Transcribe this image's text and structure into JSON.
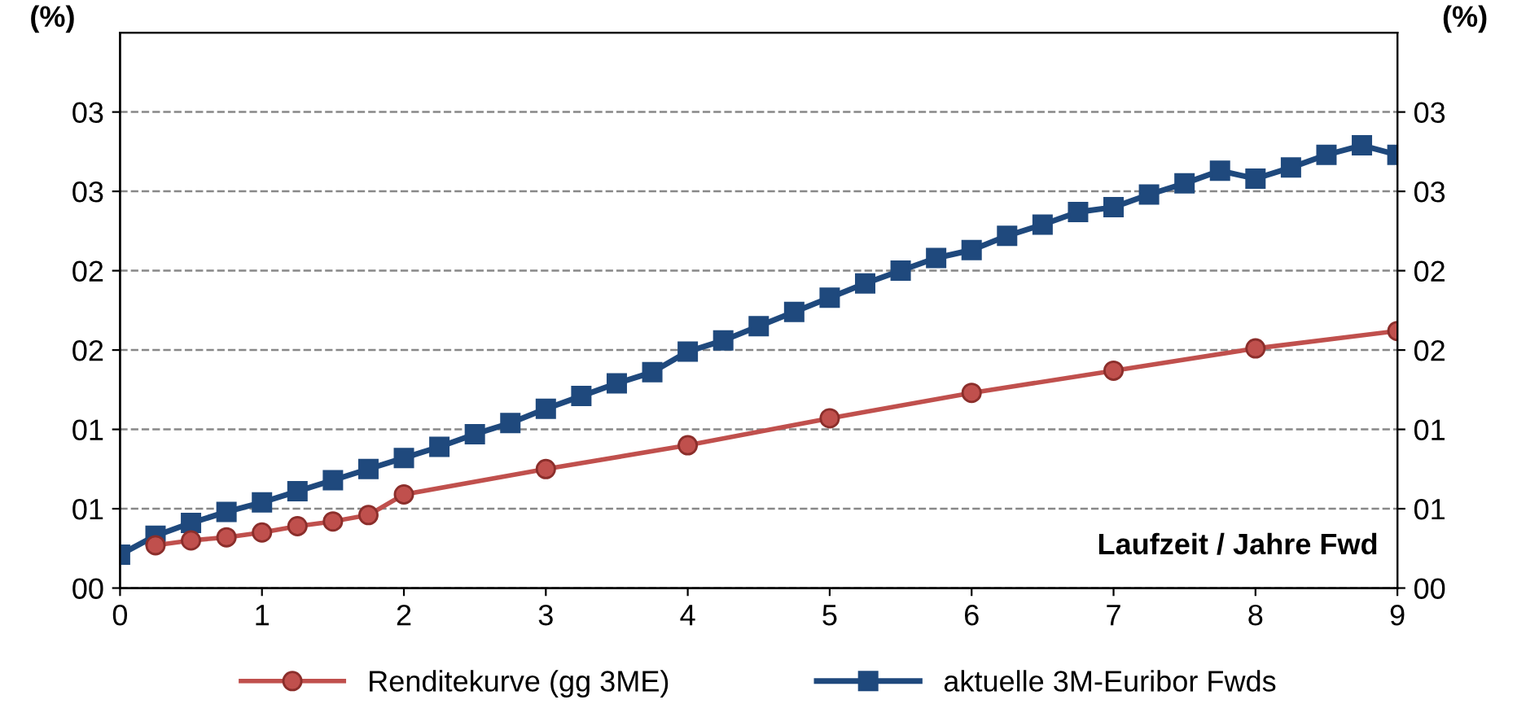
{
  "chart_data": {
    "type": "line",
    "ylabel": "(%)",
    "y2label": "(%)",
    "annotations": [
      "Laufzeit / Jahre Fwd"
    ],
    "xlim": [
      0,
      9
    ],
    "xticks": [
      0,
      1,
      2,
      3,
      4,
      5,
      6,
      7,
      8,
      9
    ],
    "ylim": [
      0,
      3.5
    ],
    "yticks": [
      {
        "value": 0,
        "label": "00"
      },
      {
        "value": 0.5,
        "label": "01"
      },
      {
        "value": 1.0,
        "label": "01"
      },
      {
        "value": 1.5,
        "label": "02"
      },
      {
        "value": 2.0,
        "label": "02"
      },
      {
        "value": 2.5,
        "label": "03"
      },
      {
        "value": 3.0,
        "label": "03"
      }
    ],
    "y2lim": [
      0,
      3.5
    ],
    "y2ticks": [
      {
        "value": 0,
        "label": "00"
      },
      {
        "value": 0.5,
        "label": "01"
      },
      {
        "value": 1.0,
        "label": "01"
      },
      {
        "value": 1.5,
        "label": "02"
      },
      {
        "value": 2.0,
        "label": "02"
      },
      {
        "value": 2.5,
        "label": "03"
      },
      {
        "value": 3.0,
        "label": "03"
      }
    ],
    "grid": "y",
    "legend": "bottom",
    "line_style": "solid",
    "series": [
      {
        "name": "Renditekurve (gg 3ME)",
        "color": "#c0504d",
        "marker": "circle",
        "x": [
          0.25,
          0.5,
          0.75,
          1,
          1.25,
          1.5,
          1.75,
          2,
          3,
          4,
          5,
          6,
          7,
          8,
          9
        ],
        "values": [
          0.27,
          0.3,
          0.32,
          0.35,
          0.39,
          0.42,
          0.46,
          0.59,
          0.75,
          0.9,
          1.07,
          1.23,
          1.37,
          1.51,
          1.62
        ]
      },
      {
        "name": "aktuelle 3M-Euribor Fwds",
        "color": "#1f497d",
        "marker": "square",
        "x": [
          0,
          0.25,
          0.5,
          0.75,
          1,
          1.25,
          1.5,
          1.75,
          2,
          2.25,
          2.5,
          2.75,
          3,
          3.25,
          3.5,
          3.75,
          4,
          4.25,
          4.5,
          4.75,
          5,
          5.25,
          5.5,
          5.75,
          6,
          6.25,
          6.5,
          6.75,
          7,
          7.25,
          7.5,
          7.75,
          8,
          8.25,
          8.5,
          8.75,
          9
        ],
        "values": [
          0.21,
          0.33,
          0.41,
          0.48,
          0.54,
          0.61,
          0.68,
          0.75,
          0.82,
          0.89,
          0.97,
          1.04,
          1.13,
          1.21,
          1.29,
          1.36,
          1.49,
          1.56,
          1.65,
          1.74,
          1.83,
          1.92,
          2.0,
          2.08,
          2.13,
          2.22,
          2.29,
          2.37,
          2.4,
          2.48,
          2.55,
          2.63,
          2.58,
          2.65,
          2.73,
          2.79,
          2.73
        ]
      }
    ]
  }
}
